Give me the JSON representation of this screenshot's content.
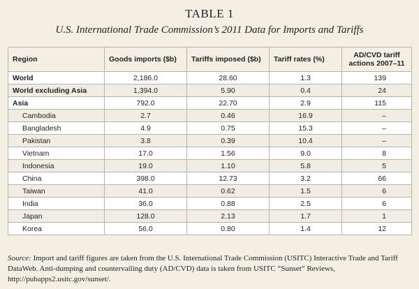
{
  "title": "TABLE 1",
  "subtitle": "U.S. International Trade Commission’s 2011 Data for Imports and Tariffs",
  "headers": {
    "region": "Region",
    "goods": "Goods imports ($b)",
    "tariffs": "Tariffs imposed ($b)",
    "rates": "Tariff rates (%)",
    "adcvd": "AD/CVD tariff actions 2007–11"
  },
  "rows": [
    {
      "region": "World",
      "goods": "2,186.0",
      "tariffs": "28.60",
      "rates": "1.3",
      "adcvd": "139"
    },
    {
      "region": "World excluding Asia",
      "goods": "1,394.0",
      "tariffs": "5.90",
      "rates": "0.4",
      "adcvd": "24"
    },
    {
      "region": "Asia",
      "goods": "792.0",
      "tariffs": "22.70",
      "rates": "2.9",
      "adcvd": "115"
    },
    {
      "region": "Cambodia",
      "goods": "2.7",
      "tariffs": "0.46",
      "rates": "16.9",
      "adcvd": "–"
    },
    {
      "region": "Bangladesh",
      "goods": "4.9",
      "tariffs": "0.75",
      "rates": "15.3",
      "adcvd": "–"
    },
    {
      "region": "Pakistan",
      "goods": "3.8",
      "tariffs": "0.39",
      "rates": "10.4",
      "adcvd": "–"
    },
    {
      "region": "Vietnam",
      "goods": "17.0",
      "tariffs": "1.56",
      "rates": "9.0",
      "adcvd": "8"
    },
    {
      "region": "Indonesia",
      "goods": "19.0",
      "tariffs": "1.10",
      "rates": "5.8",
      "adcvd": "5"
    },
    {
      "region": "China",
      "goods": "398.0",
      "tariffs": "12.73",
      "rates": "3.2",
      "adcvd": "66"
    },
    {
      "region": "Taiwan",
      "goods": "41.0",
      "tariffs": "0.62",
      "rates": "1.5",
      "adcvd": "6"
    },
    {
      "region": "India",
      "goods": "36.0",
      "tariffs": "0.88",
      "rates": "2.5",
      "adcvd": "6"
    },
    {
      "region": "Japan",
      "goods": "128.0",
      "tariffs": "2.13",
      "rates": "1.7",
      "adcvd": "1"
    },
    {
      "region": "Korea",
      "goods": "56.0",
      "tariffs": "0.80",
      "rates": "1.4",
      "adcvd": "12"
    }
  ],
  "source": {
    "label": "Source:",
    "text": "Import and tariff figures are taken from the U.S. International Trade Commission (USITC) Interactive Trade and Tariff DataWeb. Anti-dumping and countervailing duty (AD/CVD) data is taken from USITC “Sunset” Reviews, http://pubapps2.usitc.gov/sunset/."
  }
}
